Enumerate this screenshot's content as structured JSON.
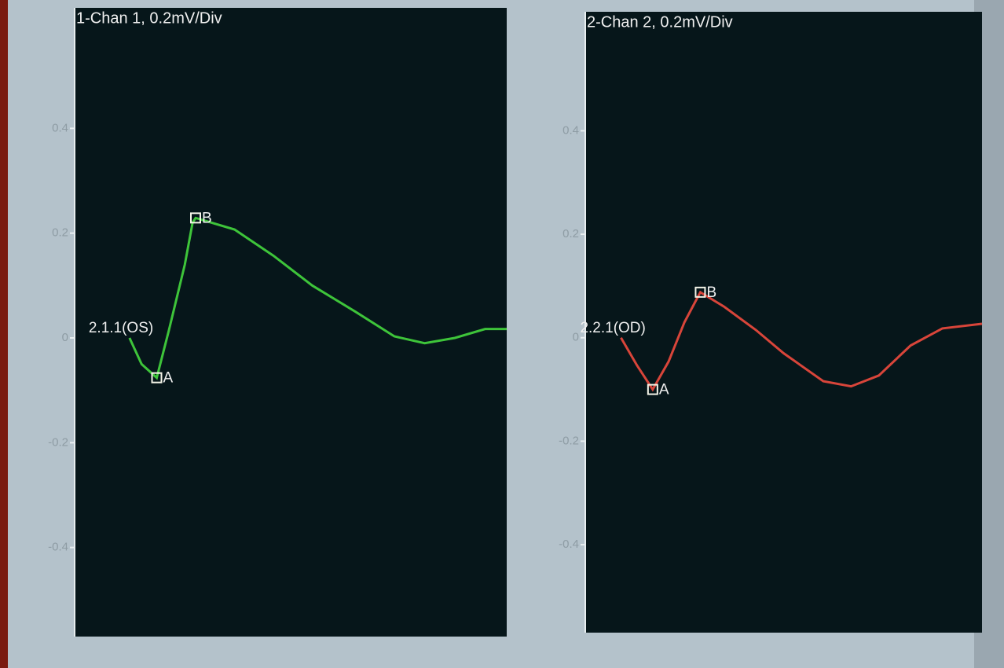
{
  "chart_data": [
    {
      "type": "line",
      "title": "1-Chan 1, 0.2mV/Div",
      "xlim": [
        0,
        100
      ],
      "ylim": [
        -0.57,
        0.63
      ],
      "yticks": [
        0.4,
        0.2,
        0,
        -0.2,
        -0.4
      ],
      "x": [
        12.7,
        15.5,
        19,
        21.8,
        25.5,
        27.3,
        28,
        37,
        46,
        55,
        65,
        74,
        81,
        88,
        95,
        100
      ],
      "series": [
        {
          "name": "2.1.1(OS)",
          "color": "#3ec43a",
          "values": [
            0,
            -0.05,
            -0.076,
            0.014,
            0.14,
            0.22,
            0.229,
            0.207,
            0.157,
            0.1,
            0.05,
            0.003,
            -0.01,
            0,
            0.017,
            0.017
          ]
        }
      ],
      "markers": [
        {
          "label": "A",
          "x": 19,
          "y": -0.076
        },
        {
          "label": "B",
          "x": 28,
          "y": 0.229
        }
      ]
    },
    {
      "type": "line",
      "title": "2-Chan 2, 0.2mV/Div",
      "xlim": [
        0,
        100
      ],
      "ylim": [
        -0.57,
        0.63
      ],
      "yticks": [
        0.4,
        0.2,
        0,
        -0.2,
        -0.4
      ],
      "x": [
        9,
        13,
        17,
        21,
        25,
        29,
        35,
        43,
        50,
        60,
        67,
        74,
        82,
        90,
        100
      ],
      "series": [
        {
          "name": "2.2.1(OD)",
          "color": "#d8453a",
          "values": [
            0,
            -0.053,
            -0.1,
            -0.046,
            0.03,
            0.088,
            0.06,
            0.015,
            -0.03,
            -0.084,
            -0.094,
            -0.073,
            -0.015,
            0.018,
            0.027
          ]
        }
      ],
      "markers": [
        {
          "label": "A",
          "x": 17,
          "y": -0.1
        },
        {
          "label": "B",
          "x": 29,
          "y": 0.088
        }
      ]
    }
  ]
}
